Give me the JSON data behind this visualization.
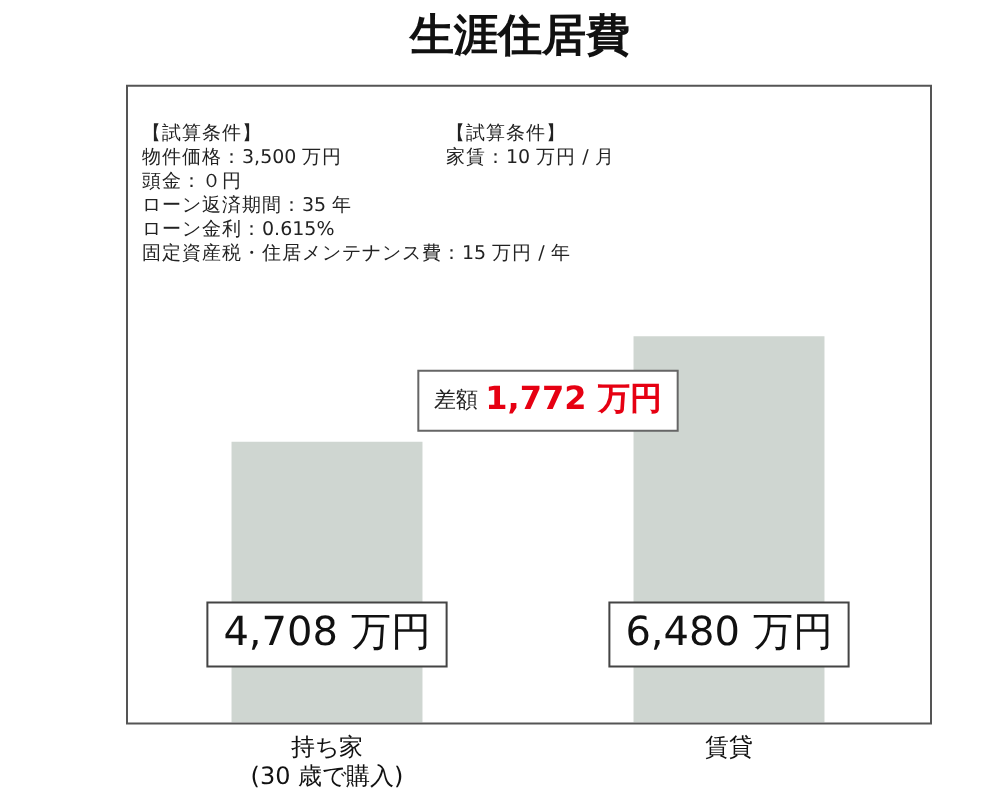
{
  "chart_data": {
    "type": "bar",
    "title": "生涯住居費",
    "categories": [
      "持ち家\n(30 歳で購入)",
      "賃貸"
    ],
    "values": [
      4708,
      6480
    ],
    "value_labels": [
      "4,708 万円",
      "6,480 万円"
    ],
    "color": "#cfd6d1",
    "ylim": [
      0,
      10700
    ],
    "relative": false,
    "annotations": [
      "【試算条件】",
      "物件価格：3,500 万円",
      "頭金：０円",
      "ローン返済期間：35 年",
      "ローン金利：0.615%",
      "固定資産税・住居メンテナンス費：15 万円 / 年",
      "【試算条件】",
      "家賃：10 万円 / 月",
      "差額 1,772 万円"
    ],
    "legend": false,
    "grid": false
  }
}
